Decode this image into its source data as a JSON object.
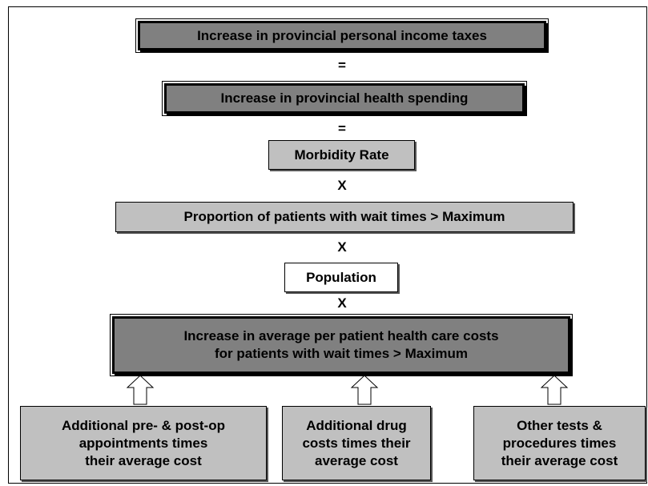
{
  "nodes": [
    {
      "label": [
        "Increase in provincial personal income taxes"
      ]
    },
    {
      "label": [
        "Increase in provincial health spending"
      ]
    },
    {
      "label": [
        "Morbidity Rate"
      ]
    },
    {
      "label": [
        "Proportion of patients with wait times > Maximum"
      ]
    },
    {
      "label": [
        "Population"
      ]
    },
    {
      "label": [
        "Increase in average per patient health care costs",
        "for patients with wait times > Maximum"
      ]
    },
    {
      "label": [
        "Additional pre- & post-op",
        "appointments times",
        "their average cost"
      ]
    },
    {
      "label": [
        "Additional drug",
        "costs times their",
        "average cost"
      ]
    },
    {
      "label": [
        "Other tests &",
        "procedures times",
        "their average cost"
      ]
    }
  ],
  "operators": [
    "=",
    "=",
    "X",
    "X",
    "X"
  ]
}
